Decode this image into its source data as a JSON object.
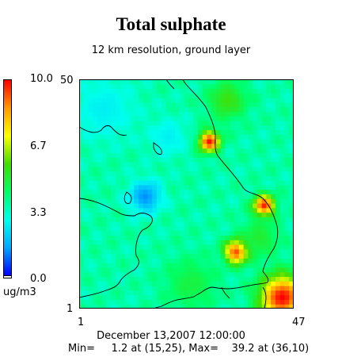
{
  "title": "Total sulphate",
  "subtitle": "12 km resolution, ground layer",
  "colorbar": {
    "unit": "ug/m3",
    "ticks": [
      "10.0",
      "6.7",
      "3.3",
      "0.0"
    ],
    "min": 0.0,
    "max": 10.0,
    "colors": [
      "#0000ff",
      "#00aaff",
      "#00ffee",
      "#00ff66",
      "#44dd00",
      "#ffff00",
      "#ff9900",
      "#ff0000"
    ]
  },
  "axes": {
    "x_min_label": "1",
    "x_max_label": "47",
    "y_min_label": "1",
    "y_max_label": "50"
  },
  "footer": {
    "date": "December 13,2007 12:00:00",
    "stats": "Min=     1.2 at (15,25), Max=    39.2 at (36,10)"
  },
  "chart_data": {
    "type": "heatmap",
    "title": "Total sulphate",
    "subtitle": "12 km resolution, ground layer",
    "unit": "ug/m3",
    "grid": {
      "cols": 47,
      "rows": 50
    },
    "xlim": [
      1,
      47
    ],
    "ylim": [
      1,
      50
    ],
    "value_range": [
      0.0,
      10.0
    ],
    "background_value": 3.6,
    "features": [
      {
        "label": "hotspot",
        "x": 29,
        "y": 37,
        "peak": 10,
        "spread": 1.6
      },
      {
        "label": "hotspot",
        "x": 41,
        "y": 23,
        "peak": 10,
        "spread": 1.6
      },
      {
        "label": "hotspot",
        "x": 35,
        "y": 13,
        "peak": 10,
        "spread": 1.8
      },
      {
        "label": "hotspot",
        "x": 45,
        "y": 3,
        "peak": 10,
        "spread": 3.4
      },
      {
        "label": "elevated",
        "x": 33,
        "y": 46,
        "peak": 5.5,
        "spread": 3
      },
      {
        "label": "elevated",
        "x": 40,
        "y": 16,
        "peak": 5.0,
        "spread": 3
      },
      {
        "label": "elevated",
        "x": 25,
        "y": 6,
        "peak": 4.8,
        "spread": 4
      },
      {
        "label": "low",
        "x": 15,
        "y": 25,
        "peak": 1.2,
        "spread": 2.5
      },
      {
        "label": "low",
        "x": 6,
        "y": 44,
        "peak": 2.6,
        "spread": 5
      },
      {
        "label": "low",
        "x": 20,
        "y": 38,
        "peak": 2.6,
        "spread": 3
      }
    ],
    "min": {
      "value": 1.2,
      "x": 15,
      "y": 25
    },
    "max": {
      "value": 39.2,
      "x": 36,
      "y": 10
    }
  }
}
